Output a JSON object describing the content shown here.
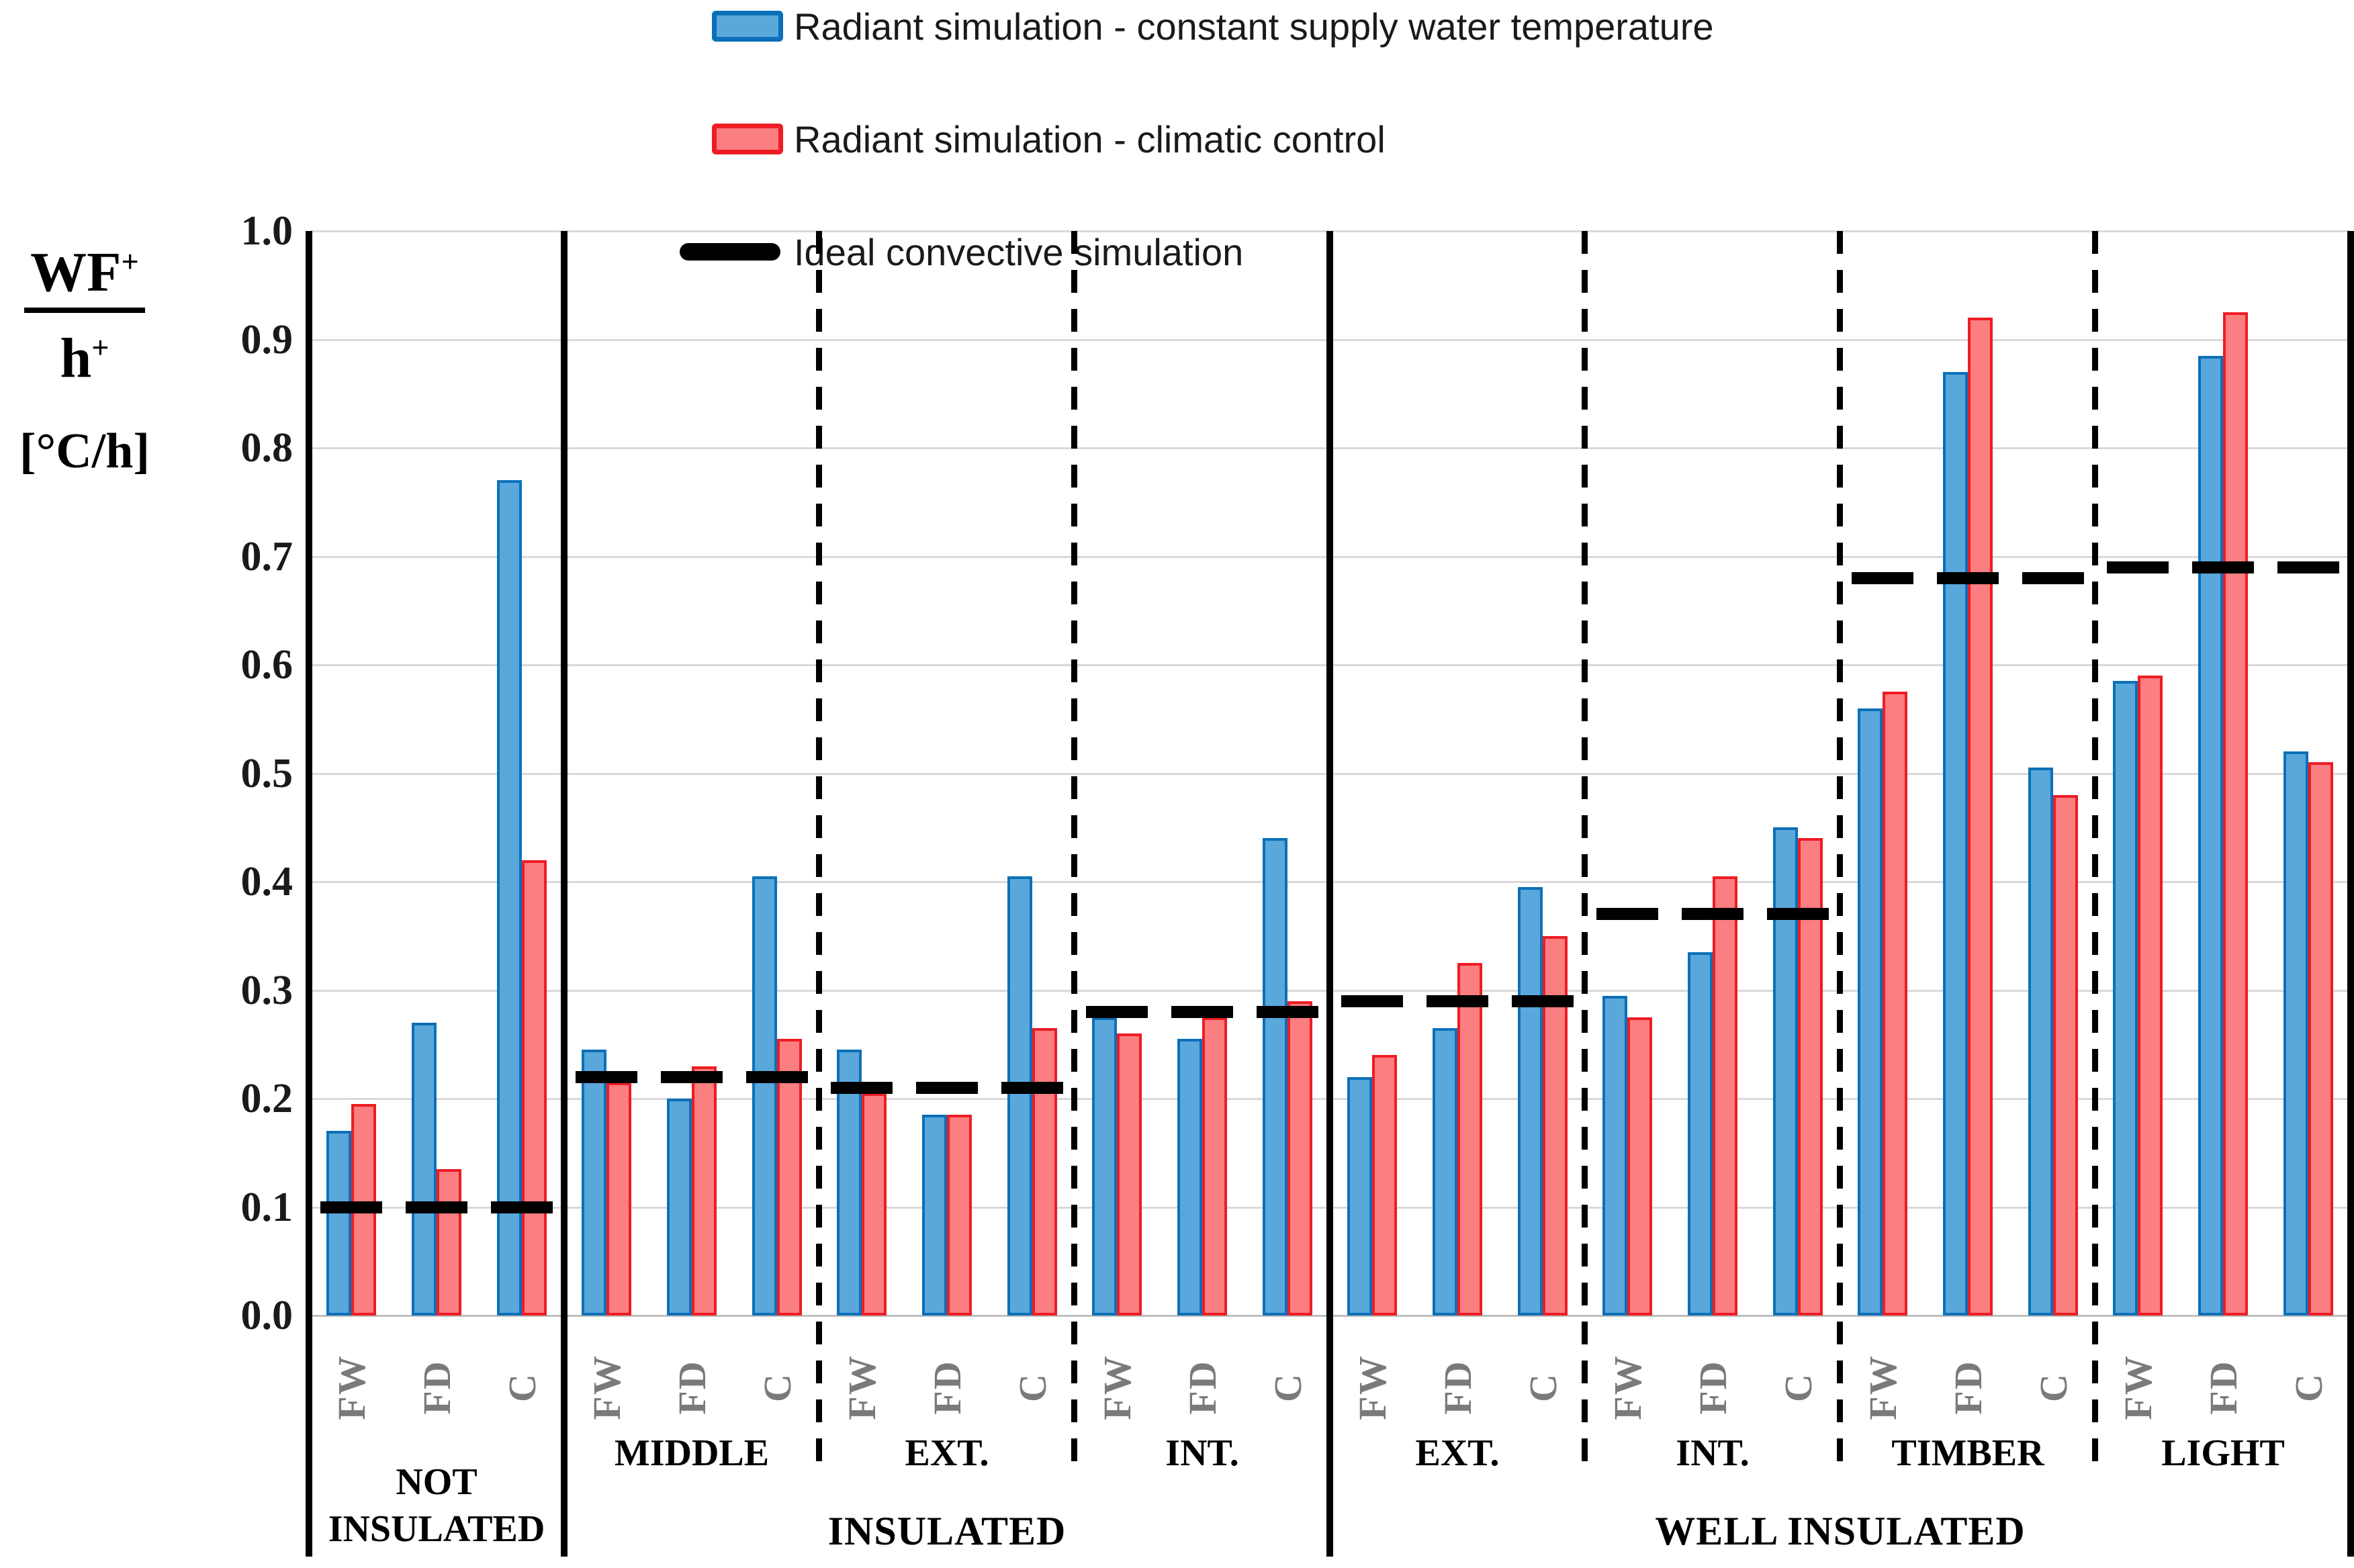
{
  "legend": [
    {
      "label": "Radiant simulation - constant supply water temperature",
      "swatch": "blue-box"
    },
    {
      "label": "Radiant simulation - climatic control",
      "swatch": "red-box"
    },
    {
      "label": "Ideal convective simulation",
      "swatch": "black-line"
    }
  ],
  "y_axis": {
    "numerator_base": "WF",
    "numerator_sup": "+",
    "denominator_base": "h",
    "denominator_sup": "+",
    "unit": "[°C/h]",
    "min": 0.0,
    "max": 1.0,
    "step": 0.1,
    "tick_labels": [
      "0.0",
      "0.1",
      "0.2",
      "0.3",
      "0.4",
      "0.5",
      "0.6",
      "0.7",
      "0.8",
      "0.9",
      "1.0"
    ]
  },
  "x_axis": {
    "bar_labels": [
      "FW",
      "FD",
      "C"
    ]
  },
  "chart_data": {
    "type": "bar",
    "title": "",
    "ylabel": "WF+/h+ [°C/h]",
    "ylim": [
      0.0,
      1.0
    ],
    "grid": true,
    "legend_position": "top",
    "series": [
      {
        "name": "Radiant simulation - constant supply water temperature",
        "fill": "#5aa7db",
        "border": "#0b70b9"
      },
      {
        "name": "Radiant simulation - climatic control",
        "fill": "#fb7e81",
        "border": "#ee1c24"
      },
      {
        "name": "Ideal convective simulation",
        "color": "#000000",
        "style": "dashed-line"
      }
    ],
    "groups": [
      {
        "label": "NOT INSULATED",
        "label_lines": [
          "NOT",
          "INSULATED"
        ],
        "divider_after": "solid",
        "ideal": 0.1,
        "bars": [
          {
            "x": "FW",
            "blue": 0.17,
            "red": 0.195
          },
          {
            "x": "FD",
            "blue": 0.27,
            "red": 0.135
          },
          {
            "x": "C",
            "blue": 0.77,
            "red": 0.42
          }
        ]
      },
      {
        "label": "MIDDLE",
        "divider_after": "dashed",
        "ideal": 0.22,
        "bars": [
          {
            "x": "FW",
            "blue": 0.245,
            "red": 0.215
          },
          {
            "x": "FD",
            "blue": 0.2,
            "red": 0.23
          },
          {
            "x": "C",
            "blue": 0.405,
            "red": 0.255
          }
        ]
      },
      {
        "label": "EXT.",
        "divider_after": "dashed",
        "ideal": 0.21,
        "bars": [
          {
            "x": "FW",
            "blue": 0.245,
            "red": 0.205
          },
          {
            "x": "FD",
            "blue": 0.185,
            "red": 0.185
          },
          {
            "x": "C",
            "blue": 0.405,
            "red": 0.265
          }
        ]
      },
      {
        "label": "INT.",
        "divider_after": "solid",
        "ideal": 0.28,
        "bars": [
          {
            "x": "FW",
            "blue": 0.275,
            "red": 0.26
          },
          {
            "x": "FD",
            "blue": 0.255,
            "red": 0.275
          },
          {
            "x": "C",
            "blue": 0.44,
            "red": 0.29
          }
        ]
      },
      {
        "label": "EXT.",
        "divider_after": "dashed",
        "ideal": 0.29,
        "bars": [
          {
            "x": "FW",
            "blue": 0.22,
            "red": 0.24
          },
          {
            "x": "FD",
            "blue": 0.265,
            "red": 0.325
          },
          {
            "x": "C",
            "blue": 0.395,
            "red": 0.35
          }
        ]
      },
      {
        "label": "INT.",
        "divider_after": "dashed",
        "ideal": 0.37,
        "bars": [
          {
            "x": "FW",
            "blue": 0.295,
            "red": 0.275
          },
          {
            "x": "FD",
            "blue": 0.335,
            "red": 0.405
          },
          {
            "x": "C",
            "blue": 0.45,
            "red": 0.44
          }
        ]
      },
      {
        "label": "TIMBER",
        "divider_after": "dashed",
        "ideal": 0.68,
        "bars": [
          {
            "x": "FW",
            "blue": 0.56,
            "red": 0.575
          },
          {
            "x": "FD",
            "blue": 0.87,
            "red": 0.92
          },
          {
            "x": "C",
            "blue": 0.505,
            "red": 0.48
          }
        ]
      },
      {
        "label": "LIGHT",
        "divider_after": "solid",
        "ideal": 0.69,
        "bars": [
          {
            "x": "FW",
            "blue": 0.585,
            "red": 0.59
          },
          {
            "x": "FD",
            "blue": 0.885,
            "red": 0.925
          },
          {
            "x": "C",
            "blue": 0.52,
            "red": 0.51
          }
        ]
      }
    ],
    "categories": [
      {
        "label": "INSULATED",
        "from": 1,
        "to": 3
      },
      {
        "label": "WELL INSULATED",
        "from": 4,
        "to": 7
      }
    ]
  }
}
